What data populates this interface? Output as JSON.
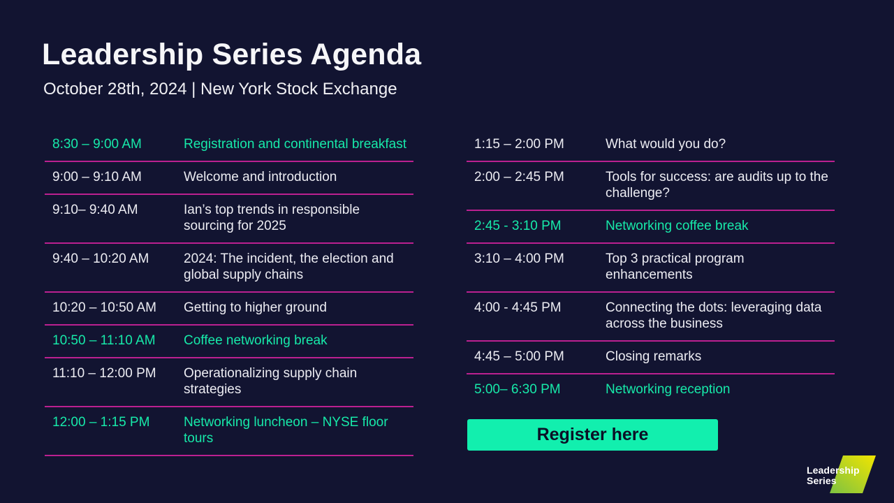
{
  "theme": {
    "background": "#121431",
    "accent_teal": "#17e9a9",
    "button_teal": "#12efae",
    "divider_magenta": "#bb2090",
    "text_white": "#ececf2",
    "logo_gradient_from": "#7dc242",
    "logo_gradient_to": "#f2e500"
  },
  "header": {
    "title": "Leadership Series Agenda",
    "subtitle": "October 28th, 2024 | New York Stock Exchange"
  },
  "agenda": {
    "left": [
      {
        "time": "8:30 – 9:00 AM",
        "title": "Registration and continental breakfast",
        "highlight": true,
        "divider": true
      },
      {
        "time": "9:00 – 9:10 AM",
        "title": "Welcome and introduction",
        "highlight": false,
        "divider": true
      },
      {
        "time": "9:10– 9:40 AM",
        "title": "Ian’s top trends in responsible sourcing for 2025",
        "highlight": false,
        "divider": true
      },
      {
        "time": "9:40 – 10:20 AM",
        "title": "2024:  The incident, the election and global supply chains",
        "highlight": false,
        "divider": true
      },
      {
        "time": "10:20 – 10:50 AM",
        "title": "Getting to higher ground",
        "highlight": false,
        "divider": true
      },
      {
        "time": "10:50 – 11:10 AM",
        "title": "Coffee networking break",
        "highlight": true,
        "divider": true
      },
      {
        "time": "11:10 – 12:00 PM",
        "title": "Operationalizing supply chain strategies",
        "highlight": false,
        "divider": true
      },
      {
        "time": "12:00 – 1:15 PM",
        "title": "Networking luncheon – NYSE floor tours",
        "highlight": true,
        "divider": true
      }
    ],
    "right": [
      {
        "time": "1:15 – 2:00 PM",
        "title": "What would you do?",
        "highlight": false,
        "divider": true
      },
      {
        "time": "2:00 – 2:45 PM",
        "title": "Tools for success: are audits up to the challenge?",
        "highlight": false,
        "divider": true
      },
      {
        "time": "2:45 - 3:10 PM",
        "title": "Networking coffee break",
        "highlight": true,
        "divider": true
      },
      {
        "time": "3:10 – 4:00 PM",
        "title": "Top 3 practical program enhancements",
        "highlight": false,
        "divider": true
      },
      {
        "time": "4:00 - 4:45 PM",
        "title": "Connecting the dots: leveraging data across the business",
        "highlight": false,
        "divider": true
      },
      {
        "time": "4:45 – 5:00 PM",
        "title": "Closing remarks",
        "highlight": false,
        "divider": true
      },
      {
        "time": "5:00– 6:30 PM",
        "title": "Networking reception",
        "highlight": true,
        "divider": false
      }
    ]
  },
  "register": {
    "label": "Register here"
  },
  "logo": {
    "line1": "Leadership",
    "line2": "Series"
  }
}
